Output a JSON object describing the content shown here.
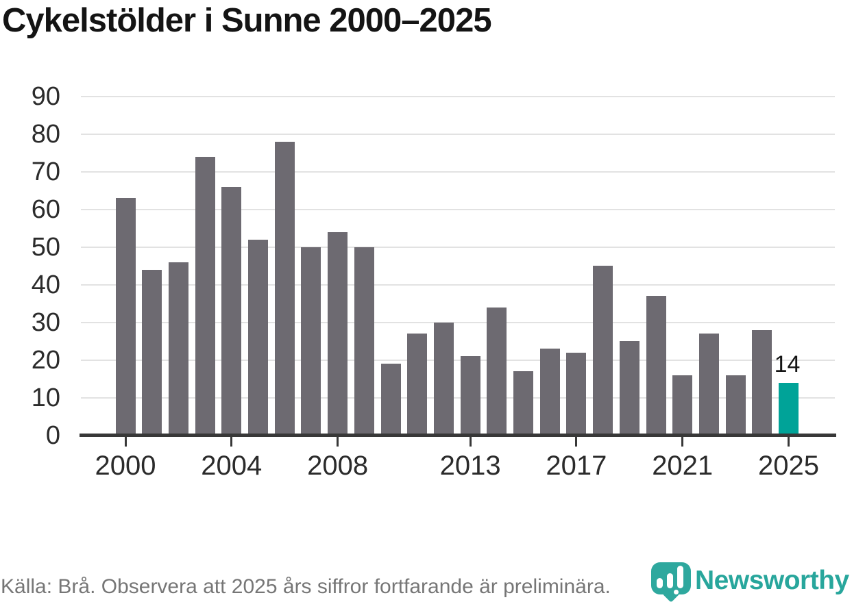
{
  "title": "Cykelstölder i Sunne 2000–2025",
  "chart_data": {
    "type": "bar",
    "x": [
      2000,
      2001,
      2002,
      2003,
      2004,
      2005,
      2006,
      2007,
      2008,
      2009,
      2010,
      2011,
      2012,
      2013,
      2014,
      2015,
      2016,
      2017,
      2018,
      2019,
      2020,
      2021,
      2022,
      2023,
      2024,
      2025
    ],
    "values": [
      63,
      44,
      46,
      74,
      66,
      52,
      78,
      50,
      54,
      50,
      19,
      27,
      30,
      21,
      34,
      17,
      23,
      22,
      45,
      25,
      37,
      16,
      27,
      16,
      28,
      14
    ],
    "highlight_year": 2025,
    "annotation": {
      "year": 2025,
      "label": "14"
    },
    "yticks": [
      0,
      10,
      20,
      30,
      40,
      50,
      60,
      70,
      80,
      90
    ],
    "xticks": [
      2000,
      2004,
      2008,
      2013,
      2017,
      2021,
      2025
    ],
    "ylim": [
      0,
      90
    ],
    "grid": "horizontal",
    "legend": "none",
    "colors": {
      "bar": "#6d6a71",
      "highlight": "#00a398",
      "gridline": "#e2e2e2",
      "axis": "#383838",
      "tick_label": "#2b2b2b",
      "annotation": "#141414"
    }
  },
  "footer": {
    "source_text": "Källa: Brå. Observera att 2025 års siffror fortfarande är preliminära.",
    "logo_text": "Newsworthy"
  }
}
